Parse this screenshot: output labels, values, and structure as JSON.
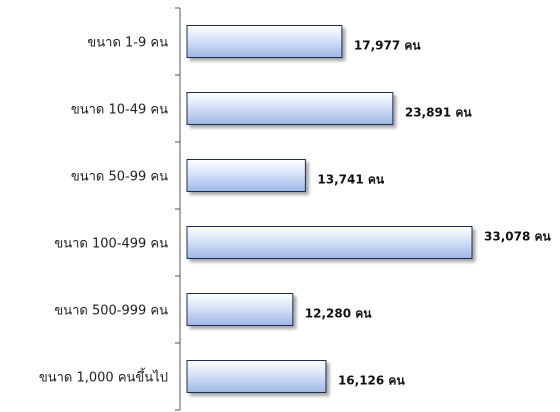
{
  "chart_data": {
    "type": "bar",
    "orientation": "horizontal",
    "categories": [
      "ขนาด 1-9 คน",
      "ขนาด 10-49 คน",
      "ขนาด 50-99 คน",
      "ขนาด 100-499 คน",
      "ขนาด 500-999 คน",
      "ขนาด 1,000 คนขึ้นไป"
    ],
    "values": [
      17977,
      23891,
      13741,
      33078,
      12280,
      16126
    ],
    "value_labels": [
      "17,977 คน",
      "23,891 คน",
      "13,741 คน",
      "33,078 คน",
      "12,280 คน",
      "16,126 คน"
    ],
    "title": "",
    "xlabel": "",
    "ylabel": "",
    "xlim": [
      0,
      33078
    ],
    "grid": false,
    "legend": "none",
    "bar_colors": {
      "light": "#ffffff",
      "mid": "#d6e2f7",
      "dark": "#9fb7e6",
      "edge": "#1f2f4f"
    }
  }
}
